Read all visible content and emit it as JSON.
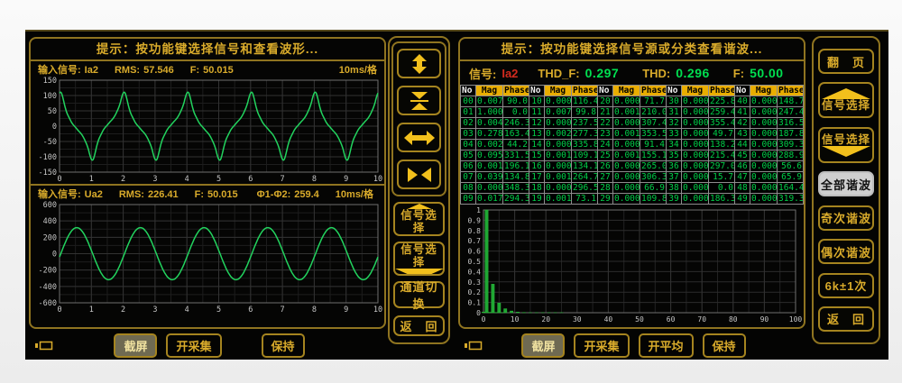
{
  "left_panel": {
    "hint": "提示：按功能键选择信号和查看波形...",
    "wave1": {
      "prefix": "输入信号:",
      "signal": "Ia2",
      "rms_label": "RMS:",
      "rms": "57.546",
      "f_label": "F:",
      "f": "50.015",
      "scale": "10ms/格"
    },
    "wave2": {
      "prefix": "输入信号:",
      "signal": "Ua2",
      "rms_label": "RMS:",
      "rms": "226.41",
      "f_label": "F:",
      "f": "50.015",
      "phase_label": "Φ1-Φ2:",
      "phase": "259.4",
      "scale": "10ms/格"
    },
    "bottom_buttons": [
      "截屏",
      "开采集",
      "保持"
    ]
  },
  "middle_buttons": {
    "zoom_icons": [
      "expand-vertical",
      "compress-vertical",
      "expand-horizontal",
      "compress-horizontal"
    ],
    "signal_select_up": "信号选择",
    "signal_select_down": "信号选择",
    "channel_switch": "通道切换",
    "back": "返　回"
  },
  "right_panel": {
    "hint": "提示：按功能键选择信号源或分类查看谐波...",
    "signal_row": {
      "signal_label": "信号:",
      "signal": "Ia2",
      "thdf_label": "THD_F:",
      "thdf": "0.297",
      "thd_label": "THD:",
      "thd": "0.296",
      "f_label": "F:",
      "f": "50.00"
    },
    "table": {
      "headers": [
        "No",
        "Mag",
        "Phase"
      ],
      "rows": [
        [
          [
            "00",
            "0.007",
            "90.0"
          ],
          [
            "10",
            "0.000",
            "116.4"
          ],
          [
            "20",
            "0.000",
            "71.7"
          ],
          [
            "30",
            "0.000",
            "225.8"
          ],
          [
            "40",
            "0.000",
            "148.7"
          ]
        ],
        [
          [
            "01",
            "1.000",
            "0.0"
          ],
          [
            "11",
            "0.007",
            "99.8"
          ],
          [
            "21",
            "0.001",
            "210.0"
          ],
          [
            "31",
            "0.000",
            "259.4"
          ],
          [
            "41",
            "0.000",
            "247.4"
          ]
        ],
        [
          [
            "02",
            "0.004",
            "246.3"
          ],
          [
            "12",
            "0.000",
            "237.5"
          ],
          [
            "22",
            "0.000",
            "307.4"
          ],
          [
            "32",
            "0.000",
            "355.4"
          ],
          [
            "42",
            "0.000",
            "316.5"
          ]
        ],
        [
          [
            "03",
            "0.278",
            "163.4"
          ],
          [
            "13",
            "0.002",
            "277.3"
          ],
          [
            "23",
            "0.001",
            "353.5"
          ],
          [
            "33",
            "0.000",
            "49.7"
          ],
          [
            "43",
            "0.000",
            "187.8"
          ]
        ],
        [
          [
            "04",
            "0.002",
            "44.2"
          ],
          [
            "14",
            "0.000",
            "335.8"
          ],
          [
            "24",
            "0.000",
            "91.4"
          ],
          [
            "34",
            "0.000",
            "138.2"
          ],
          [
            "44",
            "0.000",
            "309.3"
          ]
        ],
        [
          [
            "05",
            "0.095",
            "331.5"
          ],
          [
            "15",
            "0.001",
            "109.1"
          ],
          [
            "25",
            "0.001",
            "155.1"
          ],
          [
            "35",
            "0.000",
            "215.4"
          ],
          [
            "45",
            "0.000",
            "288.9"
          ]
        ],
        [
          [
            "06",
            "0.001",
            "196.1"
          ],
          [
            "16",
            "0.000",
            "134.1"
          ],
          [
            "26",
            "0.000",
            "265.0"
          ],
          [
            "36",
            "0.000",
            "297.0"
          ],
          [
            "46",
            "0.000",
            "56.6"
          ]
        ],
        [
          [
            "07",
            "0.039",
            "134.8"
          ],
          [
            "17",
            "0.001",
            "264.7"
          ],
          [
            "27",
            "0.000",
            "306.3"
          ],
          [
            "37",
            "0.000",
            "15.7"
          ],
          [
            "47",
            "0.000",
            "65.9"
          ]
        ],
        [
          [
            "08",
            "0.000",
            "348.3"
          ],
          [
            "18",
            "0.000",
            "296.5"
          ],
          [
            "28",
            "0.000",
            "66.9"
          ],
          [
            "38",
            "0.000",
            "0.0"
          ],
          [
            "48",
            "0.000",
            "164.4"
          ]
        ],
        [
          [
            "09",
            "0.017",
            "294.3"
          ],
          [
            "19",
            "0.001",
            "73.1"
          ],
          [
            "29",
            "0.000",
            "109.8"
          ],
          [
            "39",
            "0.000",
            "186.3"
          ],
          [
            "49",
            "0.000",
            "319.3"
          ]
        ]
      ]
    },
    "bottom_buttons": [
      "截屏",
      "开采集",
      "开平均",
      "保持"
    ]
  },
  "right_buttons": {
    "page_flip": "翻　页",
    "signal_select_up": "信号选择",
    "signal_select_down": "信号选择",
    "all_harmonics": "全部谐波",
    "odd_harmonics": "奇次谐波",
    "even_harmonics": "偶次谐波",
    "six_k": "6k±1次",
    "back": "返　回",
    "selected": "全部谐波"
  },
  "colors": {
    "accent_yellow": "#d9ab2b",
    "border_yellow": "#8f7420",
    "value_green": "#00e050",
    "signal_red": "#d42a1e",
    "table_header_bg": "#e9ad00",
    "waveform_green": "#22d35e",
    "bar_green": "#1fa733",
    "selected_button_bg": "#cfcfcf"
  },
  "chart_data": [
    {
      "id": "ia2_waveform",
      "type": "line",
      "signal": "Ia2",
      "x_ticks": [
        0,
        1,
        2,
        3,
        4,
        5,
        6,
        7,
        8,
        9,
        10
      ],
      "ylim": [
        -150,
        150
      ],
      "y_ticks": [
        -150,
        -100,
        -50,
        0,
        50,
        100,
        150
      ],
      "time_per_div": "10ms/格",
      "rms": 57.546,
      "frequency": 50.015,
      "peak": 111,
      "x_phase_offset": -0.5,
      "harmonics": [
        {
          "n": 1,
          "mag": 1.0,
          "phase_deg": 0.0
        },
        {
          "n": 3,
          "mag": 0.278,
          "phase_deg": 163.4
        },
        {
          "n": 5,
          "mag": 0.095,
          "phase_deg": 331.5
        },
        {
          "n": 7,
          "mag": 0.039,
          "phase_deg": 134.8
        },
        {
          "n": 9,
          "mag": 0.017,
          "phase_deg": 294.3
        }
      ],
      "line_color": "#22d35e",
      "grid": true
    },
    {
      "id": "ua2_waveform",
      "type": "line",
      "signal": "Ua2",
      "x_ticks": [
        0,
        1,
        2,
        3,
        4,
        5,
        6,
        7,
        8,
        9,
        10
      ],
      "ylim": [
        -600,
        600
      ],
      "y_ticks": [
        -600,
        -400,
        -200,
        0,
        200,
        400,
        600
      ],
      "time_per_div": "10ms/格",
      "rms": 226.41,
      "frequency": 50.015,
      "peak": 318,
      "x_phase_offset": 0.04,
      "harmonics": [
        {
          "n": 1,
          "mag": 1.0,
          "phase_deg": 0.0
        }
      ],
      "line_color": "#22d35e",
      "grid": true
    },
    {
      "id": "harmonic_spectrum",
      "type": "bar",
      "xlim": [
        0,
        100
      ],
      "x_ticks": [
        0,
        10,
        20,
        30,
        40,
        50,
        60,
        70,
        80,
        90,
        100
      ],
      "ylim": [
        0,
        1
      ],
      "y_ticks": [
        0,
        0.1,
        0.2,
        0.3,
        0.4,
        0.5,
        0.6,
        0.7,
        0.8,
        0.9,
        1
      ],
      "values_by_harmonic": [
        0.007,
        1.0,
        0.004,
        0.278,
        0.002,
        0.095,
        0.001,
        0.039,
        0.0,
        0.017,
        0.0,
        0.007,
        0.0,
        0.002,
        0.0,
        0.001,
        0.0,
        0.001,
        0.0,
        0.001,
        0.0,
        0.001,
        0.0,
        0.001,
        0.0,
        0.001,
        0.0,
        0.0,
        0.0,
        0.0,
        0.0,
        0.0,
        0.0,
        0.0,
        0.0,
        0.0,
        0.0,
        0.0,
        0.0,
        0.0,
        0.0,
        0.0,
        0.0,
        0.0,
        0.0,
        0.0,
        0.0,
        0.0,
        0.0,
        0.0
      ],
      "bar_color": "#1fa733",
      "grid": true
    }
  ]
}
